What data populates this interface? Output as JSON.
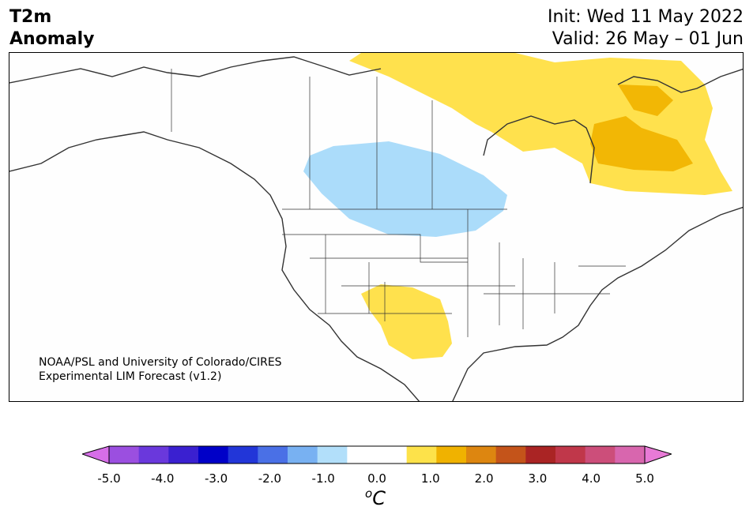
{
  "header": {
    "title_line1": "T2m",
    "title_line2": "Anomaly",
    "init_text": "Init: Wed 11 May 2022",
    "valid_text": "Valid: 26 May – 01 Jun"
  },
  "map": {
    "region": "North America",
    "credit_line1": "NOAA/PSL and University of Colorado/CIRES",
    "credit_line2": "Experimental LIM Forecast (v1.2)",
    "anomaly_areas": [
      {
        "name": "northern-canada-warm",
        "level": "0.5 to 1.0",
        "color": "#ffe14d"
      },
      {
        "name": "hudson-bay-quebec-warm",
        "level": "1.0 to 1.5",
        "color": "#f2b705"
      },
      {
        "name": "northern-plains-cool",
        "level": "-1.0 to -0.5",
        "color": "#abdcfa"
      },
      {
        "name": "southwest-warm",
        "level": "0.5 to 1.0",
        "color": "#ffe14d"
      }
    ]
  },
  "colorbar": {
    "tick_labels": [
      "-5.0",
      "-4.0",
      "-3.0",
      "-2.0",
      "-1.0",
      "0.0",
      "1.0",
      "2.0",
      "3.0",
      "4.0",
      "5.0"
    ],
    "colors": [
      "#d66ee8",
      "#9b4fe0",
      "#6a38dc",
      "#3a20d0",
      "#0000c8",
      "#2236d8",
      "#4a70e6",
      "#78b1f2",
      "#b2dffa",
      "#ffffff",
      "#ffffff",
      "#fde24a",
      "#f0b200",
      "#dd8610",
      "#c4541a",
      "#aa2424",
      "#c0374a",
      "#cc4e7a",
      "#d866ae",
      "#e87ad6"
    ],
    "unit_base": "o",
    "unit_symbol": "C"
  }
}
